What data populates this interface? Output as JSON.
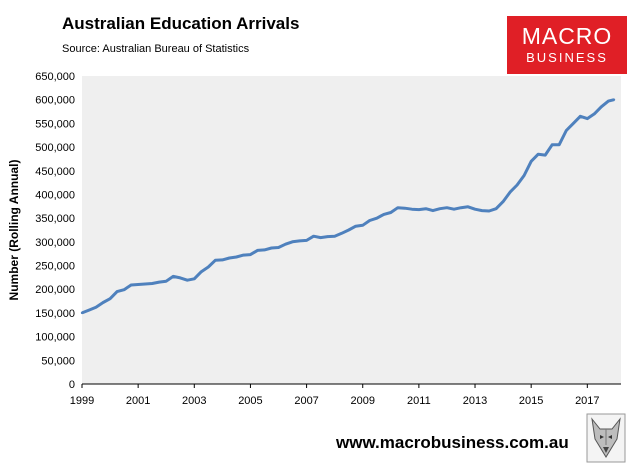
{
  "header": {
    "title": "Australian Education Arrivals",
    "subtitle": "Source: Australian Bureau of Statistics"
  },
  "logo": {
    "line1": "MACRO",
    "line2": "BUSINESS",
    "color": "#e01f26"
  },
  "footer": {
    "url": "www.macrobusiness.com.au",
    "mascot_icon": "wolf-mascot-icon"
  },
  "chart_data": {
    "type": "line",
    "title": "Australian Education Arrivals",
    "ylabel": "Number (Rolling Annual)",
    "xlabel": "",
    "xlim": [
      1999.0,
      2018.2
    ],
    "ylim": [
      0,
      650000
    ],
    "x_ticks": [
      "1999",
      "2001",
      "2003",
      "2005",
      "2007",
      "2009",
      "2011",
      "2013",
      "2015",
      "2017"
    ],
    "y_ticks": [
      "0",
      "50,000",
      "100,000",
      "150,000",
      "200,000",
      "250,000",
      "300,000",
      "350,000",
      "400,000",
      "450,000",
      "500,000",
      "550,000",
      "600,000",
      "650,000"
    ],
    "grid": false,
    "legend": "none",
    "background": "#efefef",
    "series": [
      {
        "color": "#4f81bd",
        "x": [
          1999.0,
          1999.25,
          1999.5,
          1999.75,
          2000.0,
          2000.25,
          2000.5,
          2000.75,
          2001.0,
          2001.25,
          2001.5,
          2001.75,
          2002.0,
          2002.25,
          2002.5,
          2002.75,
          2003.0,
          2003.25,
          2003.5,
          2003.75,
          2004.0,
          2004.25,
          2004.5,
          2004.75,
          2005.0,
          2005.25,
          2005.5,
          2005.75,
          2006.0,
          2006.25,
          2006.5,
          2006.75,
          2007.0,
          2007.25,
          2007.5,
          2007.75,
          2008.0,
          2008.25,
          2008.5,
          2008.75,
          2009.0,
          2009.25,
          2009.5,
          2009.75,
          2010.0,
          2010.25,
          2010.5,
          2010.75,
          2011.0,
          2011.25,
          2011.5,
          2011.75,
          2012.0,
          2012.25,
          2012.5,
          2012.75,
          2013.0,
          2013.25,
          2013.5,
          2013.75,
          2014.0,
          2014.25,
          2014.5,
          2014.75,
          2015.0,
          2015.25,
          2015.5,
          2015.75,
          2016.0,
          2016.25,
          2016.5,
          2016.75,
          2017.0,
          2017.25,
          2017.5,
          2017.75,
          2017.95
        ],
        "y": [
          150000,
          156000,
          162000,
          172000,
          180000,
          195000,
          199000,
          209000,
          210000,
          211000,
          212000,
          215000,
          217000,
          227000,
          224000,
          219000,
          222000,
          237000,
          247000,
          261000,
          262000,
          266000,
          268000,
          272000,
          273000,
          282000,
          283000,
          287000,
          288000,
          295000,
          300000,
          302000,
          303000,
          312000,
          309000,
          311000,
          312000,
          318000,
          325000,
          333000,
          335000,
          345000,
          350000,
          358000,
          362000,
          372000,
          371000,
          369000,
          368000,
          370000,
          366000,
          370000,
          372000,
          369000,
          372000,
          374000,
          369000,
          366000,
          365000,
          370000,
          385000,
          405000,
          420000,
          440000,
          470000,
          485000,
          483000,
          505000,
          505000,
          535000,
          550000,
          565000,
          560000,
          570000,
          585000,
          597000,
          600000
        ]
      }
    ]
  }
}
